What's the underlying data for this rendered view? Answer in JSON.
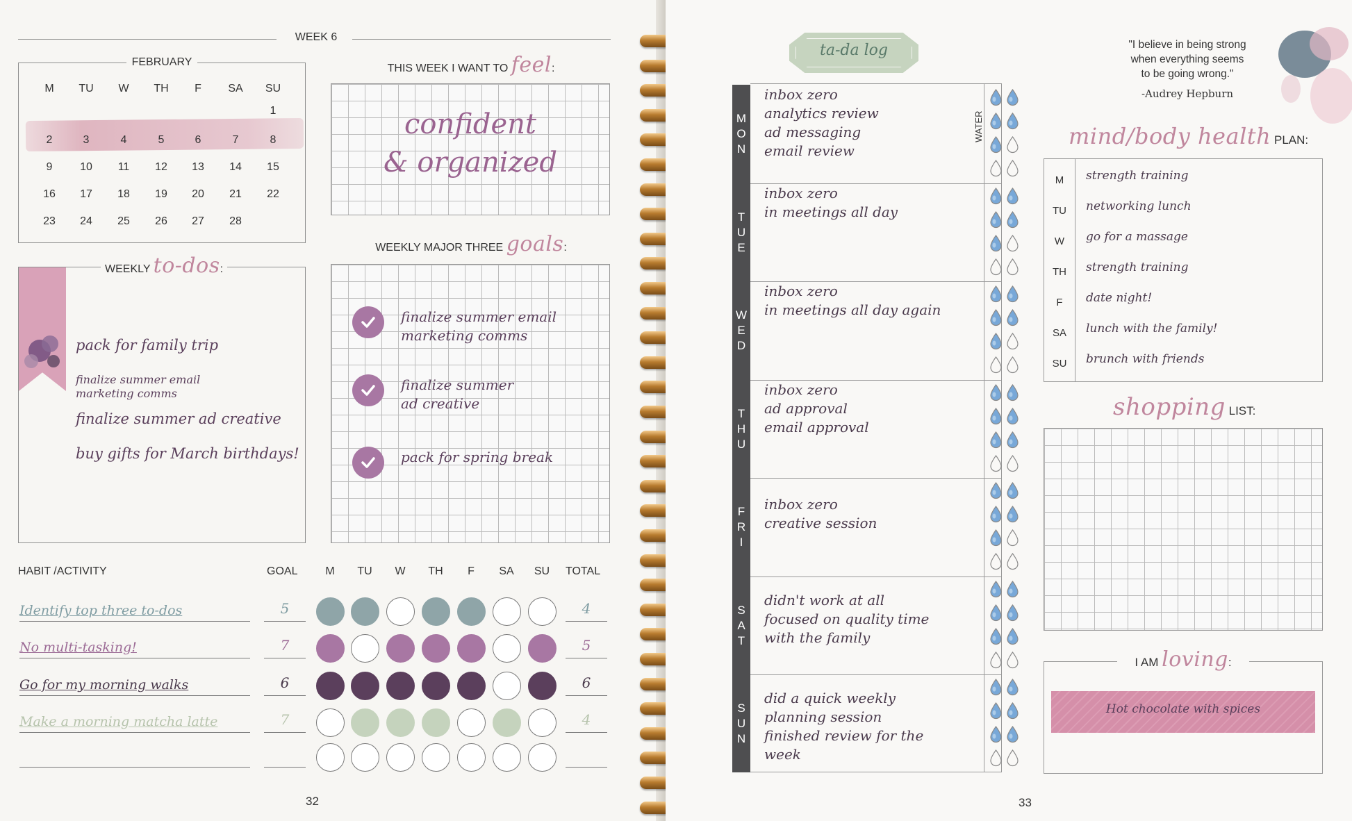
{
  "left": {
    "week_label": "WEEK 6",
    "calendar": {
      "month": "FEBRUARY",
      "days": [
        "M",
        "TU",
        "W",
        "TH",
        "F",
        "SA",
        "SU"
      ],
      "weeks": [
        [
          "",
          "",
          "",
          "",
          "",
          "",
          "1"
        ],
        [
          "2",
          "3",
          "4",
          "5",
          "6",
          "7",
          "8"
        ],
        [
          "9",
          "10",
          "11",
          "12",
          "13",
          "14",
          "15"
        ],
        [
          "16",
          "17",
          "18",
          "19",
          "20",
          "21",
          "22"
        ],
        [
          "23",
          "24",
          "25",
          "26",
          "27",
          "28",
          ""
        ]
      ]
    },
    "feel": {
      "prefix": "THIS WEEK I WANT TO",
      "script": "feel",
      "suffix": ":",
      "line1": "confident",
      "line2": "& organized"
    },
    "todos": {
      "prefix": "WEEKLY",
      "script": "to-dos",
      "suffix": ":",
      "items": [
        "pack for family trip",
        "finalize summer email marketing comms",
        "finalize summer ad creative",
        "buy gifts for March birthdays!"
      ]
    },
    "goals": {
      "prefix": "WEEKLY MAJOR THREE",
      "script": "goals",
      "suffix": ":",
      "items": [
        {
          "l1": "finalize summer email",
          "l2": "marketing comms"
        },
        {
          "l1": "finalize summer",
          "l2": "ad creative"
        },
        {
          "l1": "pack for spring break",
          "l2": ""
        }
      ]
    },
    "habits": {
      "headers": {
        "habit": "HABIT /ACTIVITY",
        "goal": "GOAL",
        "total": "TOTAL"
      },
      "days": [
        "M",
        "TU",
        "W",
        "TH",
        "F",
        "SA",
        "SU"
      ],
      "rows": [
        {
          "name": "Identify top three to-dos",
          "goal": "5",
          "total": "4",
          "color": "#8fa5a8",
          "text_color": "#7f9ca2",
          "filled": [
            true,
            true,
            false,
            true,
            true,
            false,
            false
          ]
        },
        {
          "name": "No multi-tasking!",
          "goal": "7",
          "total": "5",
          "color": "#a877a3",
          "text_color": "#9c6b96",
          "filled": [
            true,
            false,
            true,
            true,
            true,
            false,
            true
          ]
        },
        {
          "name": "Go for my morning walks",
          "goal": "6",
          "total": "6",
          "color": "#5b3f5c",
          "text_color": "#4a3a4c",
          "filled": [
            true,
            true,
            true,
            true,
            true,
            false,
            true
          ]
        },
        {
          "name": "Make a morning matcha latte",
          "goal": "7",
          "total": "4",
          "color": "#c5d3bd",
          "text_color": "#b7c4ad",
          "filled": [
            false,
            true,
            true,
            true,
            false,
            true,
            false
          ]
        },
        {
          "name": "",
          "goal": "",
          "total": "",
          "color": "#ffffff",
          "text_color": "#333",
          "filled": [
            false,
            false,
            false,
            false,
            false,
            false,
            false
          ]
        }
      ]
    },
    "page_number": "32"
  },
  "right": {
    "tada_title": "ta-da log",
    "water_label": "WATER",
    "days": [
      {
        "name": "MON",
        "entries": [
          "inbox zero",
          "analytics review",
          "ad messaging",
          "email review"
        ],
        "water": 5
      },
      {
        "name": "TUE",
        "entries": [
          "inbox zero",
          "in meetings all day"
        ],
        "water": 5
      },
      {
        "name": "WED",
        "entries": [
          "inbox zero",
          "in meetings all day again"
        ],
        "water": 5
      },
      {
        "name": "THU",
        "entries": [
          "inbox zero",
          "ad approval",
          "email approval"
        ],
        "water": 6
      },
      {
        "name": "FRI",
        "entries": [
          "inbox zero",
          "creative session"
        ],
        "water": 5
      },
      {
        "name": "SAT",
        "entries": [
          "didn't work at all",
          "focused on quality time",
          "with the family"
        ],
        "water": 6
      },
      {
        "name": "SUN",
        "entries": [
          "did a quick weekly",
          "planning session",
          "finished review for the",
          "week"
        ],
        "water": 6
      }
    ],
    "quote": {
      "line1": "\"I believe in being strong",
      "line2": "when everything seems",
      "line3": "to be going wrong.\"",
      "author": "-Audrey Hepburn"
    },
    "health": {
      "script": "mind/body health",
      "suffix": "PLAN:",
      "rows": [
        {
          "day": "M",
          "plan": "strength training"
        },
        {
          "day": "TU",
          "plan": "networking lunch"
        },
        {
          "day": "W",
          "plan": "go for a massage"
        },
        {
          "day": "TH",
          "plan": "strength training"
        },
        {
          "day": "F",
          "plan": "date night!"
        },
        {
          "day": "SA",
          "plan": "lunch with the family!"
        },
        {
          "day": "SU",
          "plan": "brunch with friends"
        }
      ]
    },
    "shopping": {
      "script": "shopping",
      "suffix": "LIST:"
    },
    "loving": {
      "prefix": "I AM",
      "script": "loving",
      "suffix": ":",
      "text": "Hot chocolate with spices"
    },
    "page_number": "33"
  },
  "colors": {
    "accent_pink": "#d58fa9",
    "mauve": "#a877a3",
    "sage": "#c6d4bf",
    "dark_tab": "#4e4e50",
    "water_blue": "#78a8d8"
  }
}
